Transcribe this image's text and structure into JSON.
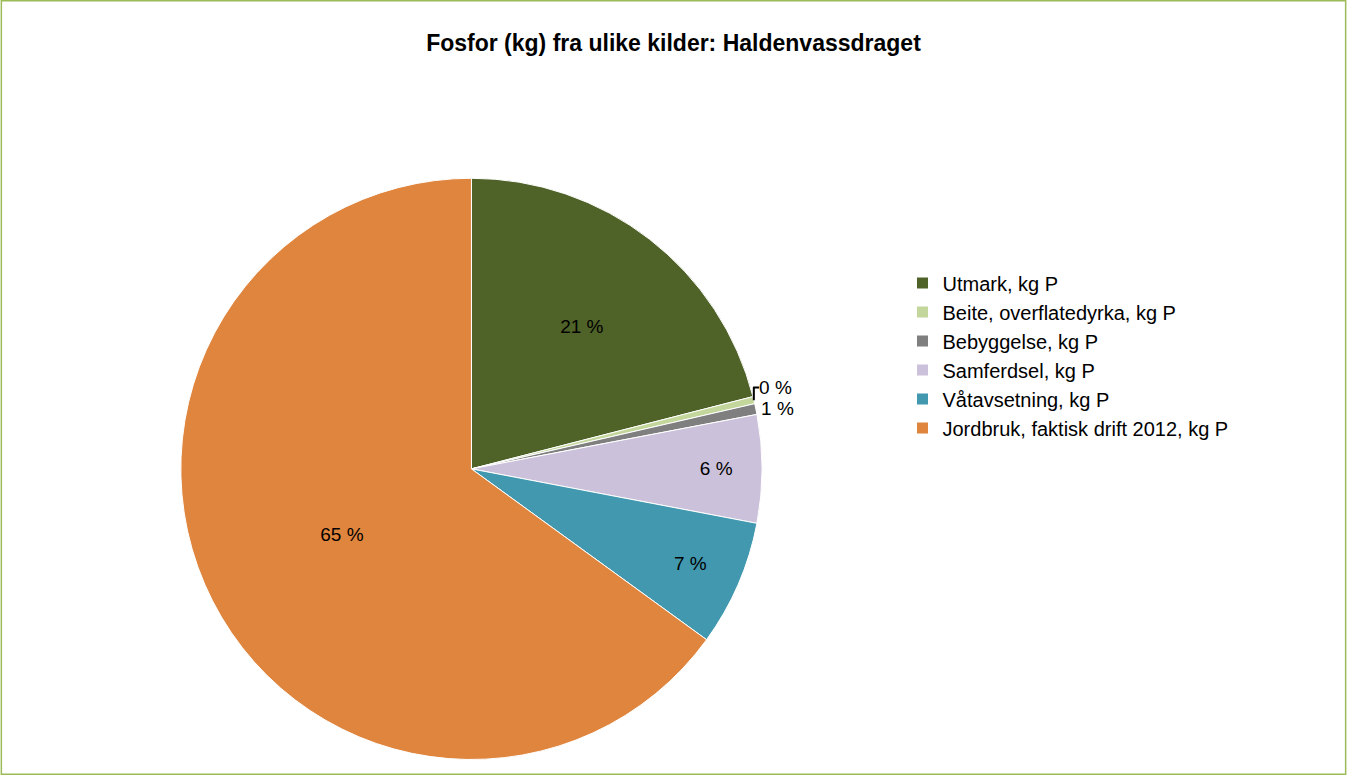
{
  "chart_data": {
    "type": "pie",
    "title": "Fosfor (kg) fra ulike kilder: Haldenvassdraget",
    "categories": [
      "Utmark, kg P",
      "Beite, overflatedyrka, kg P",
      "Bebyggelse, kg P",
      "Samferdsel, kg P",
      "Våtavsetning, kg P",
      "Jordbruk, faktisk drift 2012, kg P"
    ],
    "values": [
      21,
      0.4,
      0.6,
      6,
      7,
      65
    ],
    "value_labels": [
      "21 %",
      "0 %",
      "1 %",
      "6 %",
      "7 %",
      "65 %"
    ],
    "colors": [
      "#4f6228",
      "#c3d69b",
      "#7f7f7f",
      "#ccc1da",
      "#4198af",
      "#e0853e"
    ],
    "data_labels": true,
    "legend": "right"
  }
}
